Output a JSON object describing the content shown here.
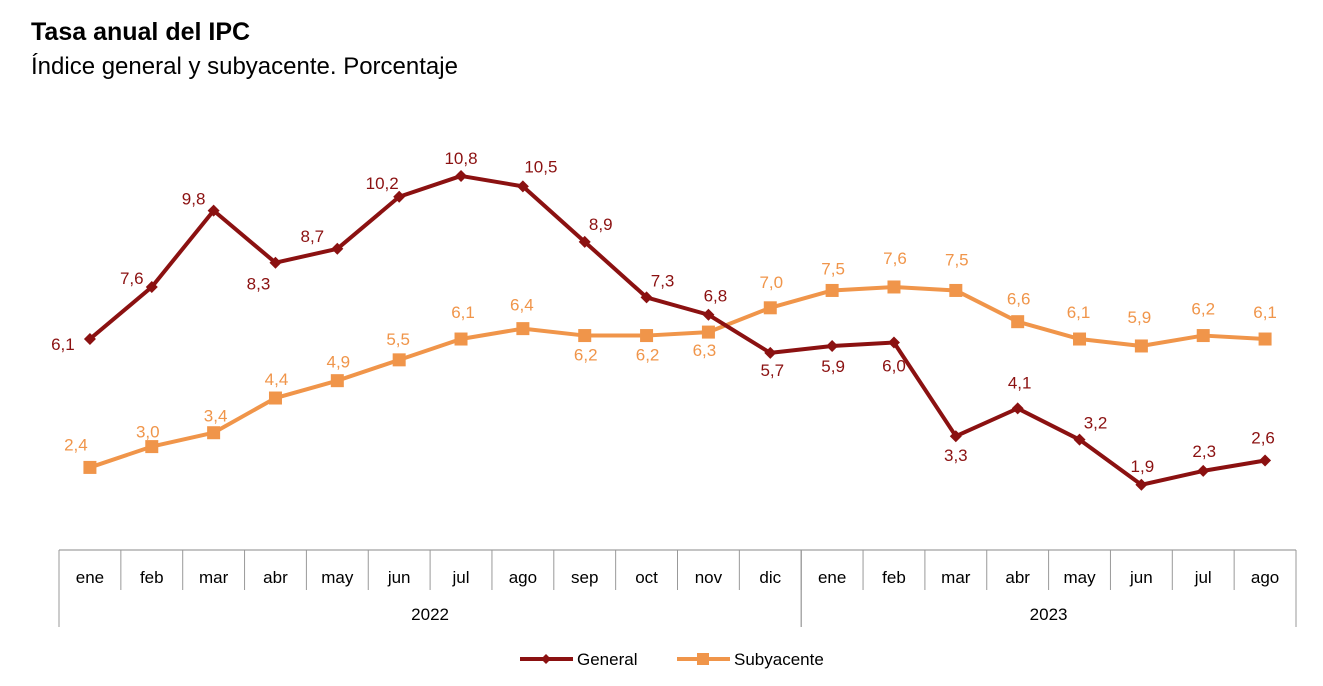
{
  "chart_data": {
    "type": "line",
    "title": "Tasa anual del IPC",
    "subtitle": "Índice general y subyacente. Porcentaje",
    "categories": [
      "ene",
      "feb",
      "mar",
      "abr",
      "may",
      "jun",
      "jul",
      "ago",
      "sep",
      "oct",
      "nov",
      "dic",
      "ene",
      "feb",
      "mar",
      "abr",
      "may",
      "jun",
      "jul",
      "ago"
    ],
    "years": [
      {
        "label": "2022",
        "months": 12
      },
      {
        "label": "2023",
        "months": 8
      }
    ],
    "ylim": [
      0,
      12
    ],
    "grid": false,
    "legend": "bottom",
    "series": [
      {
        "name": "General",
        "color": "#8B1111",
        "marker": "diamond",
        "values": [
          6.1,
          7.6,
          9.8,
          8.3,
          8.7,
          10.2,
          10.8,
          10.5,
          8.9,
          7.3,
          6.8,
          5.7,
          5.9,
          6.0,
          3.3,
          4.1,
          3.2,
          1.9,
          2.3,
          2.6
        ],
        "labels": [
          "6,1",
          "7,6",
          "9,8",
          "8,3",
          "8,7",
          "10,2",
          "10,8",
          "10,5",
          "8,9",
          "7,3",
          "6,8",
          "5,7",
          "5,9",
          "6,0",
          "3,3",
          "4,1",
          "3,2",
          "1,9",
          "2,3",
          "2,6"
        ]
      },
      {
        "name": "Subyacente",
        "color": "#F0954A",
        "marker": "square",
        "values": [
          2.4,
          3.0,
          3.4,
          4.4,
          4.9,
          5.5,
          6.1,
          6.4,
          6.2,
          6.2,
          6.3,
          7.0,
          7.5,
          7.6,
          7.5,
          6.6,
          6.1,
          5.9,
          6.2,
          6.1
        ],
        "labels": [
          "2,4",
          "3,0",
          "3,4",
          "4,4",
          "4,9",
          "5,5",
          "6,1",
          "6,4",
          "6,2",
          "6,2",
          "6,3",
          "7,0",
          "7,5",
          "7,6",
          "7,5",
          "6,6",
          "6,1",
          "5,9",
          "6,2",
          "6,1"
        ]
      }
    ]
  }
}
